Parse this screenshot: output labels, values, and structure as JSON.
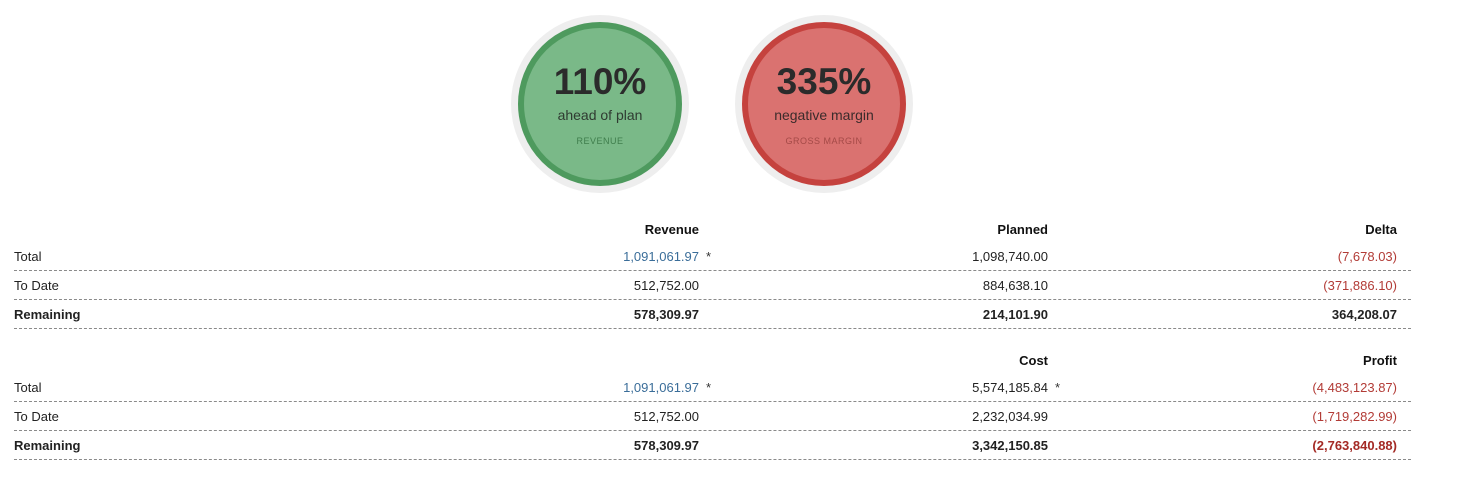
{
  "gauges": [
    {
      "value": "110%",
      "sub": "ahead of plan",
      "caption": "REVENUE",
      "status": "positive"
    },
    {
      "value": "335%",
      "sub": "negative margin",
      "caption": "GROSS MARGIN",
      "status": "negative"
    }
  ],
  "colors": {
    "positive_fill": "#7ab988",
    "positive_ring": "#4e9a5e",
    "negative_fill": "#da7270",
    "negative_ring": "#c5423e",
    "link": "#3a6d99",
    "negative_text": "#b23b36"
  },
  "table1": {
    "headers": [
      "Revenue",
      "Planned",
      "Delta"
    ],
    "rows": [
      {
        "label": "Total",
        "revenue": "1,091,061.97",
        "revenue_mark": "*",
        "planned": "1,098,740.00",
        "delta": "(7,678.03)"
      },
      {
        "label": "To Date",
        "revenue": "512,752.00",
        "planned": "884,638.10",
        "delta": "(371,886.10)"
      },
      {
        "label": "Remaining",
        "revenue": "578,309.97",
        "planned": "214,101.90",
        "delta": "364,208.07"
      }
    ]
  },
  "table2": {
    "headers": [
      "Cost",
      "Profit"
    ],
    "rows": [
      {
        "label": "Total",
        "revenue": "1,091,061.97",
        "revenue_mark": "*",
        "cost": "5,574,185.84",
        "cost_mark": "*",
        "profit": "(4,483,123.87)"
      },
      {
        "label": "To Date",
        "revenue": "512,752.00",
        "cost": "2,232,034.99",
        "profit": "(1,719,282.99)"
      },
      {
        "label": "Remaining",
        "revenue": "578,309.97",
        "cost": "3,342,150.85",
        "profit": "(2,763,840.88)"
      }
    ]
  }
}
